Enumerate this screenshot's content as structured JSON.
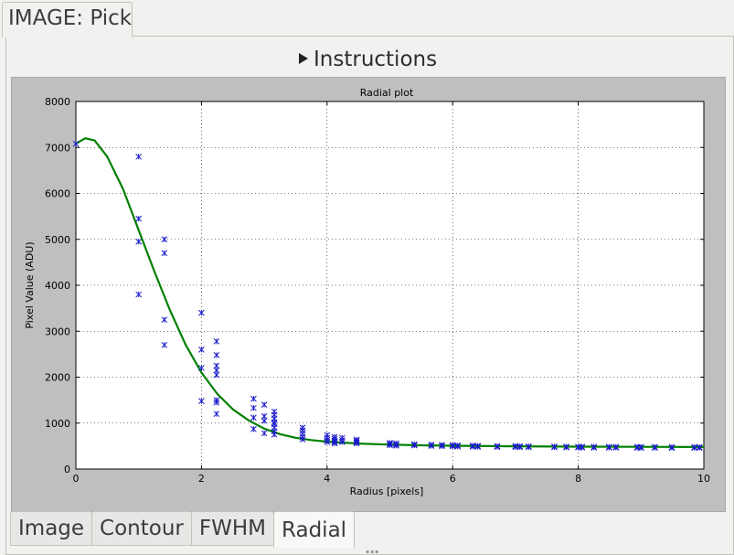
{
  "window": {
    "tab_label": "IMAGE: Pick"
  },
  "instructions": {
    "label": "Instructions"
  },
  "bottom_tabs": [
    {
      "label": "Image",
      "active": false
    },
    {
      "label": "Contour",
      "active": false
    },
    {
      "label": "FWHM",
      "active": false
    },
    {
      "label": "Radial",
      "active": true
    }
  ],
  "colors": {
    "fit_line": "#008000",
    "points": "#1a1acc",
    "figure_bg": "#bfbfbf"
  },
  "chart_data": {
    "type": "scatter",
    "title": "Radial plot",
    "xlabel": "Radius [pixels]",
    "ylabel": "Pixel Value (ADU)",
    "xlim": [
      0,
      10
    ],
    "ylim": [
      0,
      8000
    ],
    "xticks": [
      "0",
      "2",
      "4",
      "6",
      "8",
      "10"
    ],
    "yticks": [
      "0",
      "1000",
      "2000",
      "3000",
      "4000",
      "5000",
      "6000",
      "7000",
      "8000"
    ],
    "grid": true,
    "series": [
      {
        "marker": "x",
        "points": [
          [
            0,
            7080
          ],
          [
            1,
            6800
          ],
          [
            1,
            5450
          ],
          [
            1,
            4950
          ],
          [
            1,
            3800
          ],
          [
            1.41,
            5000
          ],
          [
            1.41,
            4700
          ],
          [
            1.41,
            3250
          ],
          [
            1.41,
            2700
          ],
          [
            2,
            3400
          ],
          [
            2,
            2600
          ],
          [
            2,
            2200
          ],
          [
            2,
            1480
          ],
          [
            2.24,
            2780
          ],
          [
            2.24,
            2480
          ],
          [
            2.24,
            2250
          ],
          [
            2.24,
            2150
          ],
          [
            2.24,
            2050
          ],
          [
            2.24,
            1500
          ],
          [
            2.24,
            1450
          ],
          [
            2.24,
            1200
          ],
          [
            2.83,
            1530
          ],
          [
            2.83,
            1330
          ],
          [
            2.83,
            1120
          ],
          [
            2.83,
            870
          ],
          [
            3,
            1400
          ],
          [
            3,
            1150
          ],
          [
            3,
            1050
          ],
          [
            3,
            780
          ],
          [
            3.16,
            1250
          ],
          [
            3.16,
            1180
          ],
          [
            3.16,
            1100
          ],
          [
            3.16,
            1020
          ],
          [
            3.16,
            980
          ],
          [
            3.16,
            900
          ],
          [
            3.16,
            820
          ],
          [
            3.16,
            750
          ],
          [
            3.61,
            900
          ],
          [
            3.61,
            840
          ],
          [
            3.61,
            770
          ],
          [
            3.61,
            700
          ],
          [
            3.61,
            650
          ],
          [
            4,
            740
          ],
          [
            4,
            680
          ],
          [
            4,
            630
          ],
          [
            4,
            590
          ],
          [
            4.12,
            700
          ],
          [
            4.12,
            660
          ],
          [
            4.12,
            620
          ],
          [
            4.12,
            590
          ],
          [
            4.12,
            560
          ],
          [
            4.24,
            680
          ],
          [
            4.24,
            630
          ],
          [
            4.24,
            590
          ],
          [
            4.47,
            640
          ],
          [
            4.47,
            610
          ],
          [
            4.47,
            580
          ],
          [
            4.47,
            560
          ],
          [
            5,
            570
          ],
          [
            5,
            545
          ],
          [
            5,
            520
          ],
          [
            5.1,
            560
          ],
          [
            5.1,
            530
          ],
          [
            5.1,
            510
          ],
          [
            5.39,
            540
          ],
          [
            5.39,
            515
          ],
          [
            5.66,
            530
          ],
          [
            5.66,
            505
          ],
          [
            5.83,
            525
          ],
          [
            5.83,
            500
          ],
          [
            6,
            520
          ],
          [
            6,
            495
          ],
          [
            6.08,
            515
          ],
          [
            6.08,
            490
          ],
          [
            6.32,
            510
          ],
          [
            6.32,
            488
          ],
          [
            6.4,
            505
          ],
          [
            6.4,
            485
          ],
          [
            6.71,
            500
          ],
          [
            6.71,
            482
          ],
          [
            7,
            500
          ],
          [
            7,
            480
          ],
          [
            7.07,
            495
          ],
          [
            7.07,
            478
          ],
          [
            7.21,
            492
          ],
          [
            7.21,
            476
          ],
          [
            7.62,
            490
          ],
          [
            7.62,
            474
          ],
          [
            7.81,
            488
          ],
          [
            7.81,
            472
          ],
          [
            8,
            486
          ],
          [
            8,
            470
          ],
          [
            8.06,
            485
          ],
          [
            8.06,
            469
          ],
          [
            8.25,
            484
          ],
          [
            8.25,
            468
          ],
          [
            8.49,
            483
          ],
          [
            8.49,
            467
          ],
          [
            8.6,
            482
          ],
          [
            8.6,
            466
          ],
          [
            8.94,
            481
          ],
          [
            8.94,
            465
          ],
          [
            9,
            480
          ],
          [
            9,
            464
          ],
          [
            9.22,
            480
          ],
          [
            9.22,
            464
          ],
          [
            9.49,
            479
          ],
          [
            9.49,
            463
          ],
          [
            9.85,
            478
          ],
          [
            9.85,
            462
          ],
          [
            9.93,
            478
          ],
          [
            9.93,
            462
          ]
        ]
      },
      {
        "marker": "line",
        "points": [
          [
            0,
            7080
          ],
          [
            0.15,
            7200
          ],
          [
            0.3,
            7150
          ],
          [
            0.5,
            6800
          ],
          [
            0.75,
            6100
          ],
          [
            1,
            5200
          ],
          [
            1.25,
            4300
          ],
          [
            1.5,
            3450
          ],
          [
            1.75,
            2700
          ],
          [
            2,
            2100
          ],
          [
            2.25,
            1640
          ],
          [
            2.5,
            1300
          ],
          [
            2.75,
            1060
          ],
          [
            3,
            880
          ],
          [
            3.25,
            760
          ],
          [
            3.5,
            680
          ],
          [
            3.75,
            630
          ],
          [
            4,
            595
          ],
          [
            4.5,
            555
          ],
          [
            5,
            532
          ],
          [
            5.5,
            518
          ],
          [
            6,
            508
          ],
          [
            7,
            496
          ],
          [
            8,
            488
          ],
          [
            9,
            483
          ],
          [
            10,
            480
          ]
        ]
      }
    ]
  }
}
